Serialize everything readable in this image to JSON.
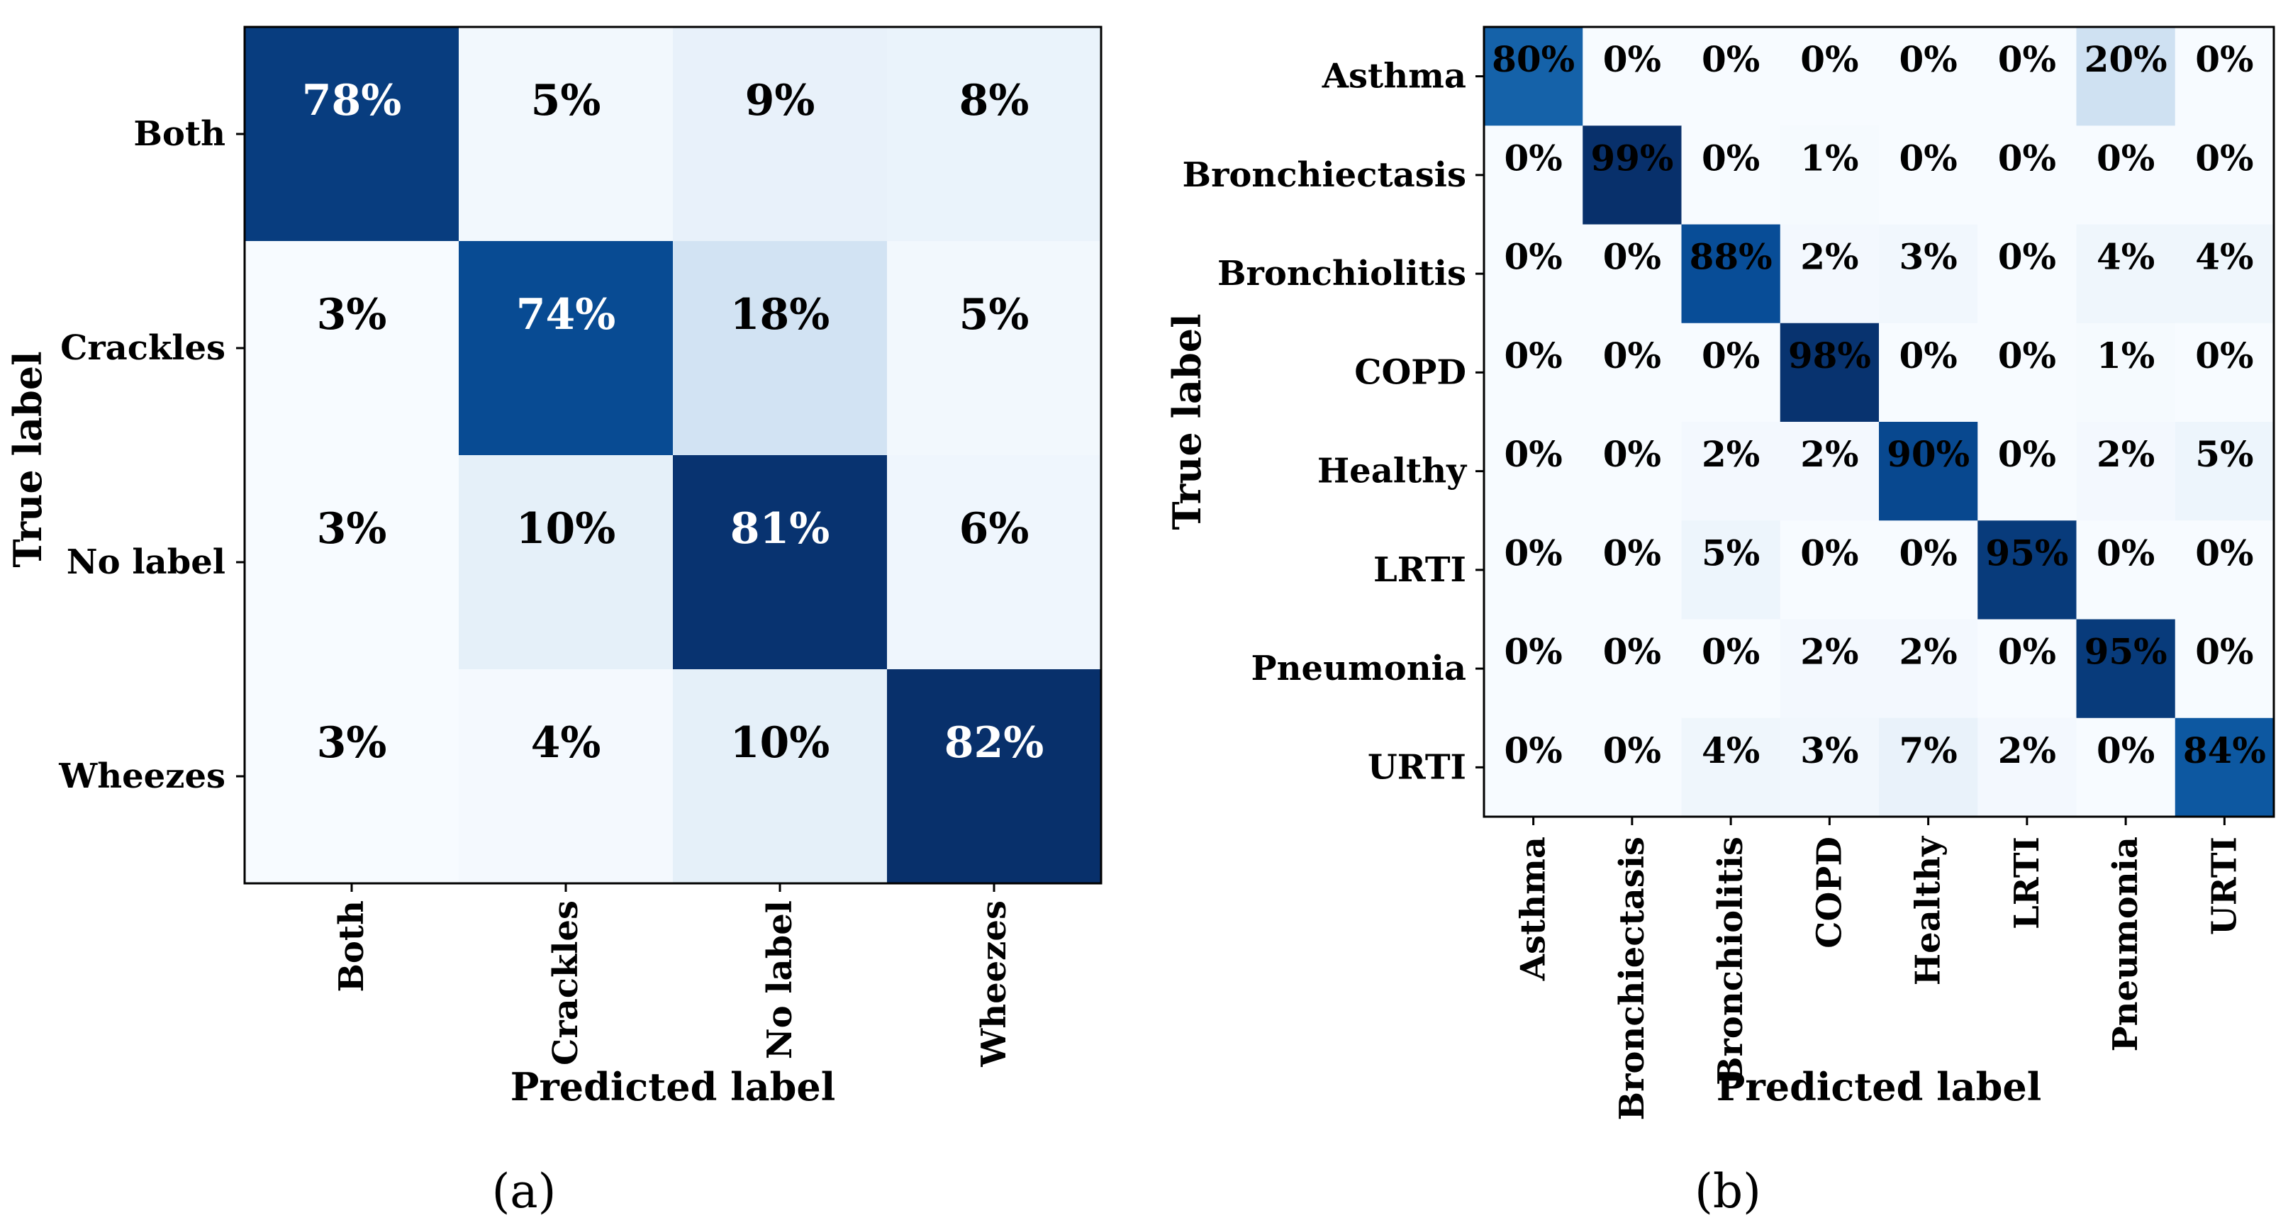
{
  "chart_data": [
    {
      "type": "heatmap",
      "subtitle": "(a)",
      "xlabel": "Predicted label",
      "ylabel": "True label",
      "x_categories": [
        "Both",
        "Crackles",
        "No label",
        "Wheezes"
      ],
      "y_categories": [
        "Both",
        "Crackles",
        "No label",
        "Wheezes"
      ],
      "colormap": "Blues",
      "values": [
        [
          78,
          5,
          9,
          8
        ],
        [
          3,
          74,
          18,
          5
        ],
        [
          3,
          10,
          81,
          6
        ],
        [
          3,
          4,
          10,
          82
        ]
      ],
      "labels": [
        [
          "78%",
          "5%",
          "9%",
          "8%"
        ],
        [
          "3%",
          "74%",
          "18%",
          "5%"
        ],
        [
          "3%",
          "10%",
          "81%",
          "6%"
        ],
        [
          "3%",
          "4%",
          "10%",
          "82%"
        ]
      ]
    },
    {
      "type": "heatmap",
      "subtitle": "(b)",
      "xlabel": "Predicted label",
      "ylabel": "True label",
      "x_categories": [
        "Asthma",
        "Bronchiectasis",
        "Bronchiolitis",
        "COPD",
        "Healthy",
        "LRTI",
        "Pneumonia",
        "URTI"
      ],
      "y_categories": [
        "Asthma",
        "Bronchiectasis",
        "Bronchiolitis",
        "COPD",
        "Healthy",
        "LRTI",
        "Pneumonia",
        "URTI"
      ],
      "colormap": "Blues",
      "values": [
        [
          80,
          0,
          0,
          0,
          0,
          0,
          20,
          0
        ],
        [
          0,
          99,
          0,
          1,
          0,
          0,
          0,
          0
        ],
        [
          0,
          0,
          88,
          2,
          3,
          0,
          4,
          4
        ],
        [
          0,
          0,
          0,
          98,
          0,
          0,
          1,
          0
        ],
        [
          0,
          0,
          2,
          2,
          90,
          0,
          2,
          5
        ],
        [
          0,
          0,
          5,
          0,
          0,
          95,
          0,
          0
        ],
        [
          0,
          0,
          0,
          2,
          2,
          0,
          95,
          0
        ],
        [
          0,
          0,
          4,
          3,
          7,
          2,
          0,
          84
        ]
      ],
      "labels": [
        [
          "80%",
          "0%",
          "0%",
          "0%",
          "0%",
          "0%",
          "20%",
          "0%"
        ],
        [
          "0%",
          "99%",
          "0%",
          "1%",
          "0%",
          "0%",
          "0%",
          "0%"
        ],
        [
          "0%",
          "0%",
          "88%",
          "2%",
          "3%",
          "0%",
          "4%",
          "4%"
        ],
        [
          "0%",
          "0%",
          "0%",
          "98%",
          "0%",
          "0%",
          "1%",
          "0%"
        ],
        [
          "0%",
          "0%",
          "2%",
          "2%",
          "90%",
          "0%",
          "2%",
          "5%"
        ],
        [
          "0%",
          "0%",
          "5%",
          "0%",
          "0%",
          "95%",
          "0%",
          "0%"
        ],
        [
          "0%",
          "0%",
          "0%",
          "2%",
          "2%",
          "0%",
          "95%",
          "0%"
        ],
        [
          "0%",
          "0%",
          "4%",
          "3%",
          "7%",
          "2%",
          "0%",
          "84%"
        ]
      ]
    }
  ]
}
